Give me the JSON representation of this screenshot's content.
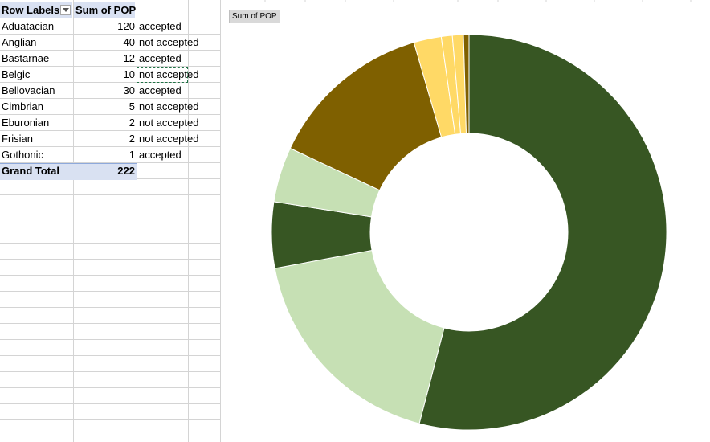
{
  "pivot": {
    "header_row_labels": "Row Labels",
    "header_sum": "Sum of POP",
    "rows": [
      {
        "label": "Aduatacian",
        "value": "120",
        "status": "accepted"
      },
      {
        "label": "Anglian",
        "value": "40",
        "status": "not accepted"
      },
      {
        "label": "Bastarnae",
        "value": "12",
        "status": "accepted"
      },
      {
        "label": "Belgic",
        "value": "10",
        "status": "not accepted"
      },
      {
        "label": "Bellovacian",
        "value": "30",
        "status": "accepted"
      },
      {
        "label": "Cimbrian",
        "value": "5",
        "status": "not accepted"
      },
      {
        "label": "Eburonian",
        "value": "2",
        "status": "not accepted"
      },
      {
        "label": "Frisian",
        "value": "2",
        "status": "not accepted"
      },
      {
        "label": "Gothonic",
        "value": "1",
        "status": "accepted"
      }
    ],
    "grand_total_label": "Grand Total",
    "grand_total_value": "222"
  },
  "chart_data": {
    "type": "pie",
    "donut": true,
    "title": "Sum of POP",
    "categories": [
      "Aduatacian",
      "Anglian",
      "Bastarnae",
      "Belgic",
      "Bellovacian",
      "Cimbrian",
      "Eburonian",
      "Frisian",
      "Gothonic"
    ],
    "values": [
      120,
      40,
      12,
      10,
      30,
      5,
      2,
      2,
      1
    ],
    "colors": [
      "#375623",
      "#c6e0b4",
      "#375623",
      "#c6e0b4",
      "#7f6000",
      "#ffd966",
      "#ffd966",
      "#ffd966",
      "#7f6000"
    ]
  },
  "colors": {
    "header_fill": "#d9e1f2",
    "gridline": "#d4d4d4"
  }
}
